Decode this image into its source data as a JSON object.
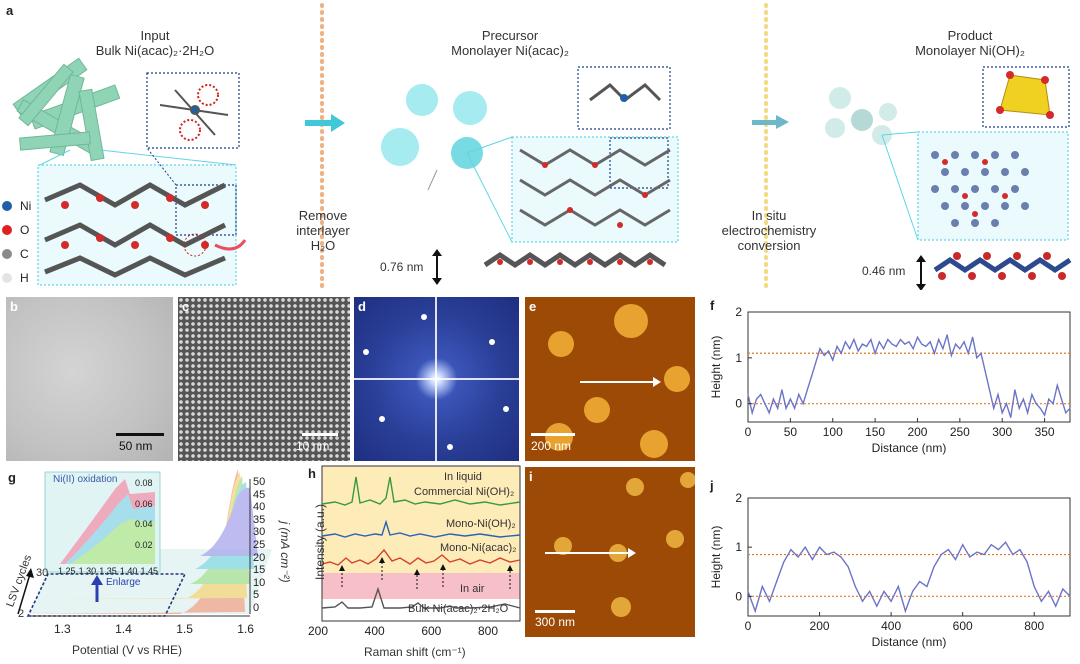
{
  "panel_a": {
    "label": "a",
    "input": {
      "title": "Input",
      "subtitle": "Bulk Ni(acac)₂·2H₂O"
    },
    "precursor": {
      "title": "Precursor",
      "subtitle": "Monolayer Ni(acac)₂"
    },
    "product": {
      "title": "Product",
      "subtitle": "Monolayer Ni(OH)₂"
    },
    "legend": [
      {
        "label": "Ni",
        "color": "#1f5fa8"
      },
      {
        "label": "O",
        "color": "#e02020"
      },
      {
        "label": "C",
        "color": "#8a8a8a"
      },
      {
        "label": "H",
        "color": "#e4e4e4"
      }
    ],
    "step1": [
      "Remove",
      "interlayer",
      "H₂O"
    ],
    "step2": [
      "In situ",
      "electrochemistry",
      "conversion"
    ],
    "thickness1": "0.76 nm",
    "thickness2": "0.46 nm"
  },
  "panel_b": {
    "label": "b",
    "scale": "50 nm"
  },
  "panel_c": {
    "label": "c",
    "scale": "10 nm"
  },
  "panel_d": {
    "label": "d"
  },
  "panel_e": {
    "label": "e",
    "scale": "200 nm"
  },
  "panel_i": {
    "label": "i",
    "scale": "300 nm"
  },
  "panel_g": {
    "label": "g",
    "inset_title": "Ni(II) oxidation",
    "enlarge": "Enlarge",
    "lsv_label": "LSV cycles",
    "lsv_ticks": [
      "2",
      "30"
    ],
    "xlabel": "Potential (V vs RHE)",
    "xticks": [
      "1.3",
      "1.4",
      "1.5",
      "1.6"
    ],
    "ylabel": "j (mA cm⁻²)",
    "yticks": [
      "0",
      "5",
      "10",
      "15",
      "20",
      "25",
      "30",
      "35",
      "40",
      "45",
      "50"
    ],
    "inset_xticks": [
      "1.25",
      "1.30",
      "1.35",
      "1.40",
      "1.45"
    ],
    "inset_yticks": [
      "0.02",
      "0.04",
      "0.06",
      "0.08"
    ]
  },
  "panel_h": {
    "label": "h",
    "in_liquid": "In liquid",
    "in_air": "In air",
    "traces": [
      {
        "name": "Commercial Ni(OH)₂",
        "color": "#3a9a3a"
      },
      {
        "name": "Mono-Ni(OH)₂",
        "color": "#2a62b8"
      },
      {
        "name": "Mono-Ni(acac)₂",
        "color": "#d8402a"
      },
      {
        "name": "Bulk Ni(acac)₂·2H₂O",
        "color": "#555555"
      }
    ],
    "xlabel": "Raman shift (cm⁻¹)",
    "ylabel": "Intensity (a.u.)",
    "xticks": [
      "200",
      "400",
      "600",
      "800"
    ]
  },
  "chart_data": [
    {
      "id": "f",
      "type": "line",
      "title": "f",
      "xlabel": "Distance (nm)",
      "ylabel": "Height (nm)",
      "xlim": [
        0,
        380
      ],
      "ylim": [
        -0.4,
        2
      ],
      "xticks": [
        0,
        50,
        100,
        150,
        200,
        250,
        300,
        350
      ],
      "yticks": [
        0,
        1,
        2
      ],
      "reference_lines": [
        0,
        1.1
      ],
      "x": [
        0,
        5,
        10,
        15,
        20,
        25,
        30,
        35,
        40,
        45,
        50,
        55,
        60,
        65,
        70,
        75,
        80,
        85,
        90,
        95,
        100,
        105,
        110,
        115,
        120,
        125,
        130,
        135,
        140,
        145,
        150,
        155,
        160,
        165,
        170,
        175,
        180,
        185,
        190,
        195,
        200,
        205,
        210,
        215,
        220,
        225,
        230,
        235,
        240,
        245,
        250,
        255,
        260,
        265,
        270,
        275,
        280,
        285,
        290,
        295,
        300,
        305,
        310,
        315,
        320,
        325,
        330,
        335,
        340,
        345,
        350,
        355,
        360,
        365,
        370,
        375,
        380
      ],
      "y": [
        0.2,
        -0.2,
        0.1,
        0.2,
        0.0,
        -0.2,
        0.1,
        -0.1,
        0.3,
        -0.1,
        0.1,
        -0.1,
        0.2,
        0.0,
        0.3,
        0.6,
        0.9,
        1.2,
        1.05,
        1.15,
        0.95,
        1.25,
        1.1,
        1.35,
        1.2,
        1.4,
        1.15,
        1.3,
        1.25,
        1.4,
        1.1,
        1.35,
        1.2,
        1.4,
        1.3,
        1.25,
        1.4,
        1.3,
        1.35,
        1.2,
        1.45,
        1.3,
        1.25,
        1.35,
        1.1,
        1.4,
        1.2,
        1.5,
        1.05,
        1.3,
        1.2,
        1.35,
        1.1,
        1.45,
        1.0,
        1.1,
        0.7,
        0.3,
        -0.1,
        0.2,
        -0.2,
        0.0,
        -0.3,
        0.3,
        -0.1,
        0.1,
        -0.2,
        0.2,
        0.0,
        -0.1,
        -0.25,
        0.1,
        0.0,
        0.4,
        0.1,
        -0.2,
        -0.1
      ],
      "color": "#6b74c7"
    },
    {
      "id": "j",
      "type": "line",
      "title": "j",
      "xlabel": "Distance (nm)",
      "ylabel": "Height (nm)",
      "xlim": [
        0,
        900
      ],
      "ylim": [
        -0.4,
        2
      ],
      "xticks": [
        0,
        200,
        400,
        600,
        800
      ],
      "yticks": [
        0,
        1,
        2
      ],
      "reference_lines": [
        0,
        0.85
      ],
      "x": [
        0,
        20,
        40,
        60,
        80,
        100,
        120,
        140,
        160,
        180,
        200,
        220,
        240,
        260,
        280,
        300,
        320,
        340,
        360,
        380,
        400,
        420,
        440,
        460,
        480,
        500,
        520,
        540,
        560,
        580,
        600,
        620,
        640,
        660,
        680,
        700,
        720,
        740,
        760,
        780,
        800,
        820,
        840,
        860,
        880,
        900
      ],
      "y": [
        0.1,
        -0.3,
        0.2,
        -0.1,
        0.3,
        0.7,
        0.95,
        0.8,
        1.0,
        0.75,
        1.0,
        0.85,
        0.9,
        0.8,
        0.6,
        0.2,
        -0.1,
        0.1,
        -0.2,
        0.1,
        -0.1,
        0.2,
        -0.3,
        0.1,
        0.3,
        0.2,
        0.6,
        0.85,
        0.95,
        0.75,
        1.05,
        0.8,
        0.9,
        0.85,
        1.05,
        0.95,
        1.1,
        0.85,
        0.95,
        0.7,
        0.2,
        -0.1,
        0.1,
        -0.2,
        0.15,
        0.0
      ],
      "color": "#6b74c7"
    }
  ]
}
